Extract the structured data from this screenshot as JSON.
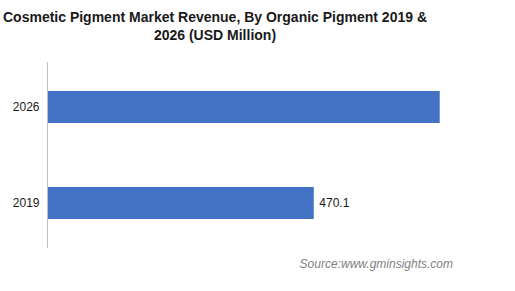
{
  "chart_data": {
    "type": "bar",
    "orientation": "horizontal",
    "title": "Cosmetic Pigment Market Revenue, By Organic Pigment 2019 & 2026 (USD Million)",
    "source": "Source:www.gminsights.com",
    "categories": [
      "2026",
      "2019"
    ],
    "values": [
      692,
      470.1
    ],
    "value_labels": [
      null,
      "470.1"
    ],
    "data_labels": true,
    "color": "#4472c4",
    "xlim": [
      0,
      800
    ],
    "xticks": [],
    "tick_labels": "y",
    "grid": false
  }
}
